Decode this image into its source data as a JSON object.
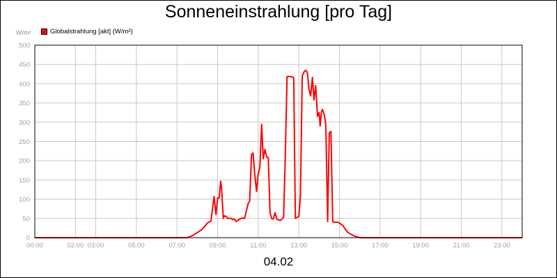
{
  "chart_data": {
    "type": "line",
    "title": "Sonneneinstrahlung [pro Tag]",
    "y_unit": "W/m²",
    "x_subtitle": "04.02",
    "legend": {
      "placement": "top-left"
    },
    "grid": true,
    "xlim_hours": [
      0,
      24
    ],
    "ylim": [
      0,
      500
    ],
    "y_ticks": [
      0,
      50,
      100,
      150,
      200,
      250,
      300,
      350,
      400,
      450,
      500
    ],
    "x_ticks": [
      {
        "h": 0,
        "label": "00:00"
      },
      {
        "h": 2,
        "label": "02:00"
      },
      {
        "h": 3,
        "label": "03:00"
      },
      {
        "h": 5,
        "label": "05:00"
      },
      {
        "h": 7,
        "label": "07:00"
      },
      {
        "h": 9,
        "label": "09:00"
      },
      {
        "h": 11,
        "label": "11:00"
      },
      {
        "h": 13,
        "label": "13:00"
      },
      {
        "h": 15,
        "label": "15:00"
      },
      {
        "h": 17,
        "label": "17:00"
      },
      {
        "h": 19,
        "label": "19:00"
      },
      {
        "h": 21,
        "label": "21:00"
      },
      {
        "h": 23,
        "label": "23:00"
      }
    ],
    "series": [
      {
        "name": "Globalstrahlung [akt] (W/m²)",
        "color": "#ff0000",
        "x": [
          0,
          7.5,
          7.75,
          8.0,
          8.25,
          8.5,
          8.67,
          8.83,
          8.92,
          9.0,
          9.08,
          9.15,
          9.2,
          9.28,
          9.33,
          9.42,
          9.5,
          9.67,
          9.75,
          9.83,
          9.92,
          10.0,
          10.1,
          10.25,
          10.33,
          10.5,
          10.58,
          10.67,
          10.75,
          10.83,
          10.92,
          11.0,
          11.08,
          11.17,
          11.25,
          11.33,
          11.42,
          11.5,
          11.58,
          11.67,
          11.75,
          11.83,
          11.92,
          12.0,
          12.1,
          12.25,
          12.33,
          12.42,
          12.5,
          12.58,
          12.67,
          12.75,
          12.83,
          12.92,
          13.0,
          13.08,
          13.17,
          13.25,
          13.33,
          13.42,
          13.5,
          13.58,
          13.67,
          13.75,
          13.83,
          13.92,
          14.0,
          14.05,
          14.12,
          14.17,
          14.25,
          14.3,
          14.33,
          14.42,
          14.5,
          14.58,
          14.67,
          14.75,
          14.83,
          14.92,
          15.0,
          15.08,
          15.17,
          15.25,
          15.42,
          15.75,
          16.0,
          16.5,
          17.0,
          17.25,
          17.5,
          17.67,
          17.83,
          18.0,
          24.0
        ],
        "values": [
          0,
          0,
          5,
          13,
          22,
          38,
          43,
          107,
          60,
          103,
          103,
          147,
          128,
          50,
          57,
          55,
          50,
          50,
          47,
          48,
          42,
          45,
          49,
          51,
          50,
          88,
          95,
          216,
          220,
          165,
          120,
          165,
          183,
          294,
          205,
          229,
          209,
          208,
          65,
          49,
          49,
          65,
          48,
          46,
          45,
          53,
          200,
          418,
          419,
          418,
          418,
          415,
          50,
          53,
          55,
          110,
          420,
          430,
          435,
          430,
          385,
          368,
          416,
          358,
          395,
          315,
          325,
          290,
          328,
          333,
          320,
          305,
          290,
          42,
          272,
          276,
          41,
          40,
          40,
          40,
          38,
          35,
          32,
          25,
          13,
          4,
          0,
          0,
          0,
          0,
          0,
          0,
          0,
          0,
          0
        ]
      }
    ]
  }
}
